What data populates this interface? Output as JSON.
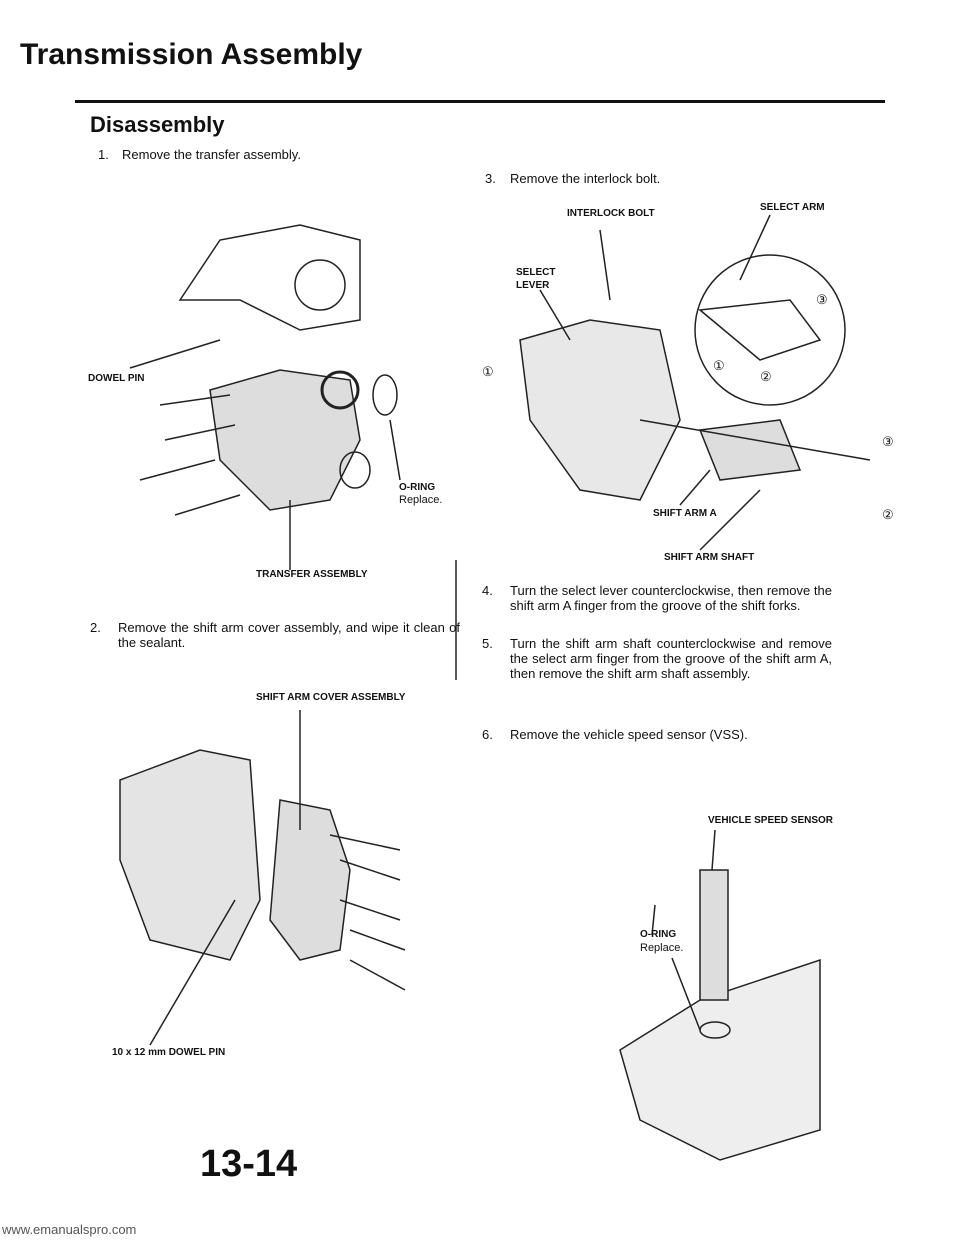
{
  "header": {
    "title": "Transmission Assembly"
  },
  "section": {
    "title": "Disassembly"
  },
  "steps": [
    {
      "number": "1.",
      "text": "Remove the transfer assembly."
    },
    {
      "number": "2.",
      "text": "Remove the shift arm cover assembly, and wipe it clean of the sealant."
    },
    {
      "number": "3.",
      "text": "Remove the interlock bolt."
    },
    {
      "number": "4.",
      "text": "Turn the select lever counterclockwise, then remove the shift arm A finger from the groove of the shift forks."
    },
    {
      "number": "5.",
      "text": "Turn the shift arm shaft counterclockwise and remove the select arm finger from the groove of the shift arm A, then remove the shift arm shaft assembly."
    },
    {
      "number": "6.",
      "text": "Remove the vehicle speed sensor (VSS)."
    }
  ],
  "figures": [
    {
      "labels": [
        "DOWEL PIN",
        "O-RING",
        "Replace.",
        "TRANSFER ASSEMBLY"
      ]
    },
    {
      "labels": [
        "SHIFT ARM COVER ASSEMBLY",
        "10 x 12 mm DOWEL PIN"
      ]
    },
    {
      "labels": [
        "INTERLOCK BOLT",
        "SELECT ARM",
        "SELECT LEVER",
        "SHIFT ARM A",
        "SHIFT ARM SHAFT",
        "①",
        "②",
        "③",
        "①",
        "②",
        "③"
      ]
    },
    {
      "labels": [
        "VEHICLE SPEED SENSOR",
        "O-RING",
        "Replace."
      ]
    }
  ],
  "footer": {
    "page_number": "13-14",
    "website": "www.emanualspro.com"
  }
}
